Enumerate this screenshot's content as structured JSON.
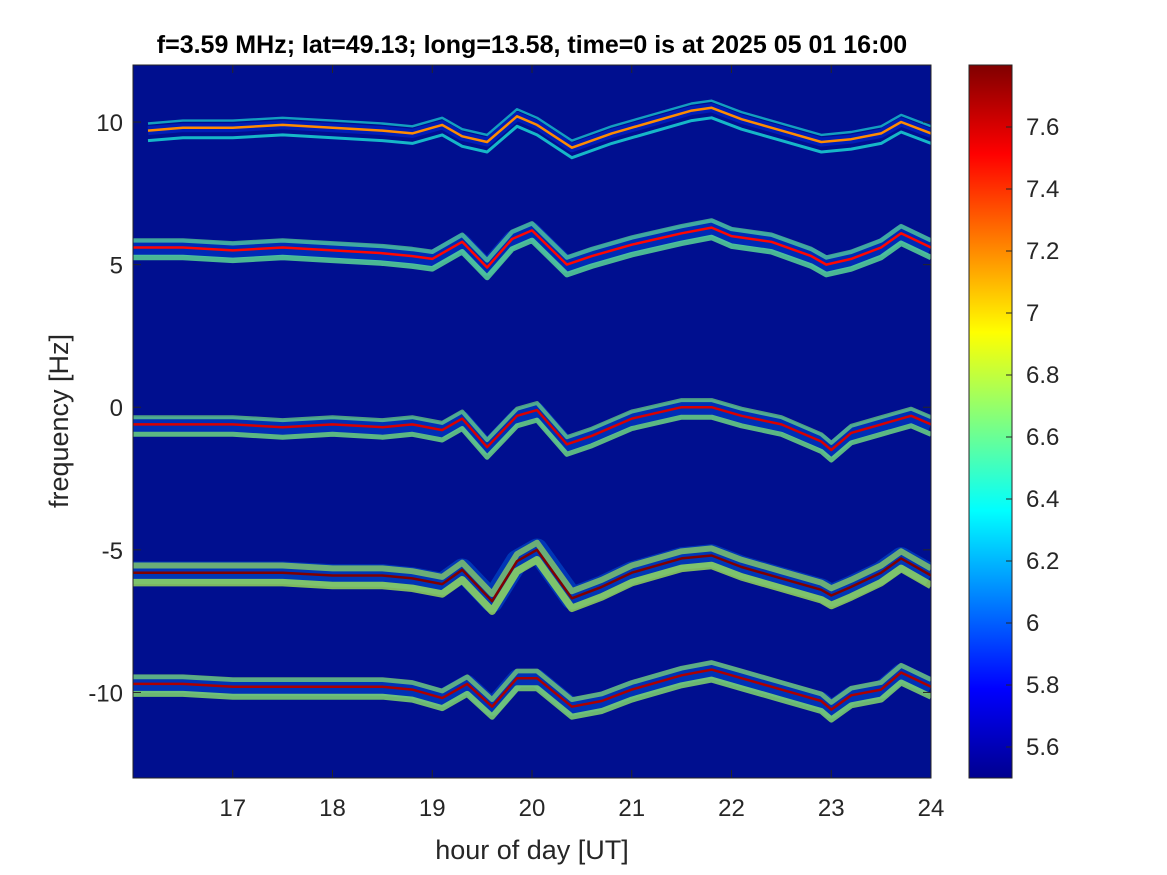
{
  "chart_data": {
    "type": "heatmap",
    "title": "f=3.59 MHz;  lat=49.13; long=13.58, time=0 is at 2025 05 01 16:00",
    "xlabel": "hour of day [UT]",
    "ylabel": "frequency [Hz]",
    "xlim": [
      16.0,
      24.0
    ],
    "ylim": [
      -13.0,
      12.0
    ],
    "xticks": [
      17,
      18,
      19,
      20,
      21,
      22,
      23,
      24
    ],
    "yticks": [
      -10,
      -5,
      0,
      5,
      10
    ],
    "colorbar": {
      "colormap": "jet",
      "clim": [
        5.5,
        7.8
      ],
      "ticks": [
        "5.6",
        "5.8",
        "6",
        "6.2",
        "6.4",
        "6.6",
        "6.8",
        "7",
        "7.2",
        "7.4",
        "7.6"
      ]
    },
    "grid": false,
    "background_value": 5.5,
    "series": [
      {
        "offset": 10,
        "peak": 7.2,
        "spread": 0.3,
        "x": [
          16.15,
          16.5,
          17.0,
          17.5,
          18.0,
          18.5,
          18.8,
          19.1,
          19.3,
          19.55,
          19.85,
          20.05,
          20.4,
          20.8,
          21.2,
          21.6,
          21.8,
          22.1,
          22.5,
          22.9,
          23.2,
          23.5,
          23.7,
          24.0
        ],
        "y": [
          9.7,
          9.8,
          9.8,
          9.9,
          9.8,
          9.7,
          9.6,
          9.9,
          9.5,
          9.3,
          10.2,
          9.9,
          9.1,
          9.6,
          10.0,
          10.4,
          10.5,
          10.1,
          9.7,
          9.3,
          9.4,
          9.6,
          10.0,
          9.6
        ]
      },
      {
        "offset": 5,
        "peak": 7.5,
        "spread": 0.55,
        "x": [
          16.0,
          16.5,
          17.0,
          17.5,
          18.0,
          18.5,
          18.8,
          19.0,
          19.3,
          19.55,
          19.8,
          20.0,
          20.35,
          20.6,
          21.0,
          21.5,
          21.8,
          22.0,
          22.4,
          22.8,
          22.95,
          23.2,
          23.5,
          23.7,
          24.0
        ],
        "y": [
          5.6,
          5.6,
          5.5,
          5.6,
          5.5,
          5.4,
          5.3,
          5.2,
          5.8,
          4.9,
          5.9,
          6.2,
          5.0,
          5.3,
          5.7,
          6.1,
          6.3,
          6.0,
          5.8,
          5.3,
          5.0,
          5.2,
          5.6,
          6.1,
          5.6
        ]
      },
      {
        "offset": 0,
        "peak": 7.6,
        "spread": 0.5,
        "x": [
          16.0,
          16.5,
          17.0,
          17.5,
          18.0,
          18.5,
          18.8,
          19.1,
          19.3,
          19.55,
          19.85,
          20.05,
          20.35,
          20.6,
          21.0,
          21.5,
          21.8,
          22.1,
          22.5,
          22.9,
          23.0,
          23.2,
          23.5,
          23.8,
          24.0
        ],
        "y": [
          -0.6,
          -0.6,
          -0.6,
          -0.7,
          -0.6,
          -0.7,
          -0.6,
          -0.8,
          -0.4,
          -1.4,
          -0.3,
          -0.1,
          -1.3,
          -1.0,
          -0.4,
          0.0,
          0.0,
          -0.3,
          -0.6,
          -1.2,
          -1.5,
          -0.9,
          -0.6,
          -0.3,
          -0.6
        ]
      },
      {
        "offset": -5,
        "peak": 7.8,
        "spread": 0.75,
        "x": [
          16.0,
          16.5,
          17.0,
          17.5,
          18.0,
          18.5,
          18.8,
          19.1,
          19.3,
          19.6,
          19.85,
          20.05,
          20.4,
          20.7,
          21.0,
          21.5,
          21.8,
          22.1,
          22.5,
          22.9,
          23.0,
          23.2,
          23.5,
          23.7,
          24.0
        ],
        "y": [
          -5.8,
          -5.8,
          -5.8,
          -5.8,
          -5.9,
          -5.9,
          -6.0,
          -6.2,
          -5.7,
          -6.8,
          -5.4,
          -5.0,
          -6.7,
          -6.3,
          -5.8,
          -5.3,
          -5.2,
          -5.6,
          -6.0,
          -6.4,
          -6.6,
          -6.3,
          -5.8,
          -5.3,
          -5.9
        ]
      },
      {
        "offset": -10,
        "peak": 7.7,
        "spread": 0.6,
        "x": [
          16.0,
          16.5,
          17.0,
          17.5,
          18.0,
          18.5,
          18.8,
          19.1,
          19.35,
          19.6,
          19.85,
          20.05,
          20.4,
          20.7,
          21.0,
          21.5,
          21.8,
          22.1,
          22.5,
          22.9,
          23.0,
          23.2,
          23.5,
          23.7,
          24.0
        ],
        "y": [
          -9.7,
          -9.7,
          -9.8,
          -9.8,
          -9.8,
          -9.8,
          -9.9,
          -10.2,
          -9.7,
          -10.5,
          -9.5,
          -9.5,
          -10.5,
          -10.3,
          -9.9,
          -9.4,
          -9.2,
          -9.5,
          -9.9,
          -10.3,
          -10.6,
          -10.1,
          -9.9,
          -9.3,
          -9.8
        ]
      }
    ]
  }
}
